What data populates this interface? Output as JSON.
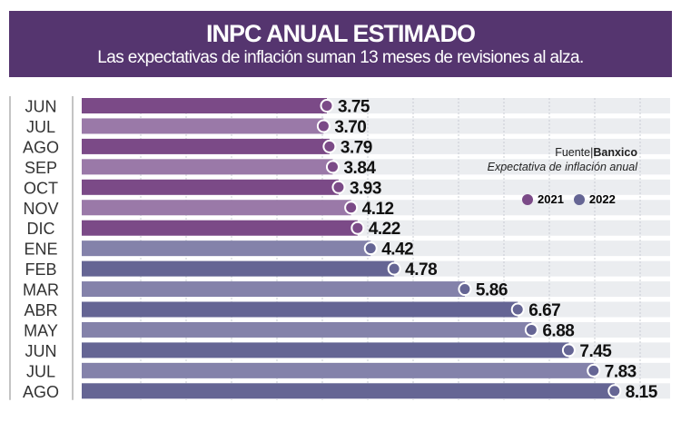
{
  "header": {
    "title": "INPC ANUAL ESTIMADO",
    "subtitle": "Las expectativas de inflación suman 13 meses de revisiones al alza."
  },
  "source": {
    "label": "Fuente",
    "name": "Banxico",
    "note": "Expectativa de inflación anual"
  },
  "colors": {
    "header": "#55356f",
    "y2021": "#7b4a87",
    "y2021_alt": "#9a79a8",
    "y2022": "#656594",
    "y2022_alt": "#8482aa",
    "track": "#ebedf0"
  },
  "chart_data": {
    "type": "bar",
    "orientation": "horizontal",
    "title": "INPC ANUAL ESTIMADO",
    "categories": [
      "JUN",
      "JUL",
      "AGO",
      "SEP",
      "OCT",
      "NOV",
      "DIC",
      "ENE",
      "FEB",
      "MAR",
      "ABR",
      "MAY",
      "JUN",
      "JUL",
      "AGO"
    ],
    "years": [
      "2021",
      "2021",
      "2021",
      "2021",
      "2021",
      "2021",
      "2021",
      "2022",
      "2022",
      "2022",
      "2022",
      "2022",
      "2022",
      "2022",
      "2022"
    ],
    "values": [
      3.75,
      3.7,
      3.79,
      3.84,
      3.93,
      4.12,
      4.22,
      4.42,
      4.78,
      5.86,
      6.67,
      6.88,
      7.45,
      7.83,
      8.15
    ],
    "data_labels": [
      "3.75",
      "3.70",
      "3.79",
      "3.84",
      "3.93",
      "4.12",
      "4.22",
      "4.42",
      "4.78",
      "5.86",
      "6.67",
      "6.88",
      "7.45",
      "7.83",
      "8.15"
    ],
    "legend": [
      {
        "name": "2021",
        "color": "#7b4a87"
      },
      {
        "name": "2022",
        "color": "#656594"
      }
    ],
    "legend_position": "right",
    "xlim": [
      0,
      9
    ],
    "grid": true
  }
}
